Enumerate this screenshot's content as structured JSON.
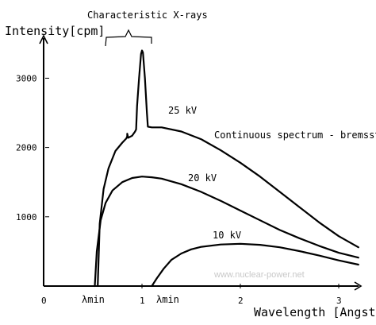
{
  "chart_data": {
    "type": "line",
    "xlabel": "Wavelength  [Angström]",
    "ylabel": "Intensity[cpm]",
    "xlim": [
      0,
      3.2
    ],
    "ylim": [
      0,
      3600
    ],
    "x_ticks": [
      {
        "value": 0,
        "label": "0"
      },
      {
        "value": 1,
        "label": "1"
      },
      {
        "value": 2,
        "label": "2"
      },
      {
        "value": 3,
        "label": "3"
      }
    ],
    "y_ticks": [
      {
        "value": 1000,
        "label": "1000"
      },
      {
        "value": 2000,
        "label": "2000"
      },
      {
        "value": 3000,
        "label": "3000"
      }
    ],
    "grid": false,
    "series": [
      {
        "name": "25 kV",
        "points": [
          [
            0.55,
            0
          ],
          [
            0.57,
            900
          ],
          [
            0.61,
            1400
          ],
          [
            0.66,
            1700
          ],
          [
            0.73,
            1950
          ],
          [
            0.8,
            2070
          ],
          [
            0.84,
            2130
          ],
          [
            0.85,
            2160
          ],
          [
            0.85,
            2200
          ],
          [
            0.86,
            2140
          ],
          [
            0.9,
            2170
          ],
          [
            0.93,
            2230
          ],
          [
            0.94,
            2260
          ],
          [
            0.95,
            2600
          ],
          [
            0.97,
            3000
          ],
          [
            0.99,
            3350
          ],
          [
            1.0,
            3400
          ],
          [
            1.01,
            3370
          ],
          [
            1.03,
            3000
          ],
          [
            1.05,
            2500
          ],
          [
            1.06,
            2300
          ],
          [
            1.1,
            2290
          ],
          [
            1.2,
            2290
          ],
          [
            1.4,
            2230
          ],
          [
            1.6,
            2120
          ],
          [
            1.8,
            1960
          ],
          [
            2.0,
            1780
          ],
          [
            2.2,
            1580
          ],
          [
            2.4,
            1360
          ],
          [
            2.6,
            1140
          ],
          [
            2.8,
            920
          ],
          [
            3.0,
            720
          ],
          [
            3.2,
            560
          ]
        ]
      },
      {
        "name": "20 kV",
        "points": [
          [
            0.52,
            0
          ],
          [
            0.54,
            500
          ],
          [
            0.58,
            950
          ],
          [
            0.63,
            1200
          ],
          [
            0.7,
            1380
          ],
          [
            0.8,
            1500
          ],
          [
            0.9,
            1560
          ],
          [
            1.0,
            1580
          ],
          [
            1.1,
            1570
          ],
          [
            1.2,
            1550
          ],
          [
            1.4,
            1470
          ],
          [
            1.6,
            1360
          ],
          [
            1.8,
            1230
          ],
          [
            2.0,
            1090
          ],
          [
            2.2,
            950
          ],
          [
            2.4,
            810
          ],
          [
            2.6,
            690
          ],
          [
            2.8,
            580
          ],
          [
            3.0,
            480
          ],
          [
            3.2,
            410
          ]
        ]
      },
      {
        "name": "10 kV",
        "points": [
          [
            1.1,
            0
          ],
          [
            1.15,
            110
          ],
          [
            1.22,
            250
          ],
          [
            1.3,
            380
          ],
          [
            1.4,
            470
          ],
          [
            1.5,
            530
          ],
          [
            1.6,
            565
          ],
          [
            1.8,
            600
          ],
          [
            2.0,
            610
          ],
          [
            2.2,
            595
          ],
          [
            2.4,
            560
          ],
          [
            2.6,
            505
          ],
          [
            2.8,
            440
          ],
          [
            3.0,
            370
          ],
          [
            3.2,
            310
          ]
        ]
      }
    ],
    "annotations": {
      "characteristic": "Characteristic  X-rays",
      "continuous": "Continuous  spectrum  - bremsstrahlung",
      "lambda_min_1": "λmin",
      "lambda_min_2": "λmin",
      "watermark": "www.nuclear-power.net"
    }
  }
}
